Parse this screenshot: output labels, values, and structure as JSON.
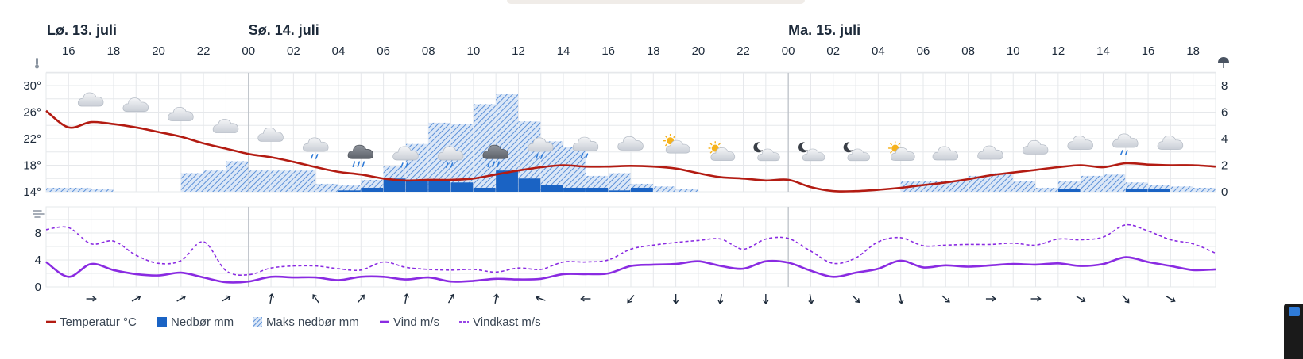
{
  "chart_data": {
    "type": "weather-meteogram",
    "days": [
      {
        "label": "Lø. 13. juli",
        "hour": 15
      },
      {
        "label": "Sø. 14. juli",
        "hour": 24
      },
      {
        "label": "Ma. 15. juli",
        "hour": 48
      }
    ],
    "hours": [
      "16",
      "18",
      "20",
      "22",
      "00",
      "02",
      "04",
      "06",
      "08",
      "10",
      "12",
      "14",
      "16",
      "18",
      "20",
      "22",
      "00",
      "02",
      "04",
      "06",
      "08",
      "10",
      "12",
      "14",
      "16",
      "18"
    ],
    "hour_positions": [
      16,
      18,
      20,
      22,
      24,
      26,
      28,
      30,
      32,
      34,
      36,
      38,
      40,
      42,
      44,
      46,
      48,
      50,
      52,
      54,
      56,
      58,
      60,
      62,
      64,
      66
    ],
    "x_range": [
      15,
      67
    ],
    "temperature": {
      "name": "Temperatur °C",
      "color": "#b31b12",
      "y_ticks": [
        "30°",
        "26°",
        "22°",
        "18°",
        "14°"
      ],
      "y_tick_values": [
        30,
        26,
        22,
        18,
        14
      ],
      "ylim": [
        14,
        30
      ],
      "x": [
        15,
        16,
        17,
        18,
        19,
        20,
        21,
        22,
        23,
        24,
        25,
        26,
        27,
        28,
        29,
        30,
        31,
        32,
        33,
        34,
        35,
        36,
        37,
        38,
        39,
        40,
        41,
        42,
        43,
        44,
        45,
        46,
        47,
        48,
        49,
        50,
        51,
        52,
        53,
        54,
        55,
        56,
        57,
        58,
        59,
        60,
        61,
        62,
        63,
        64,
        65,
        66,
        67
      ],
      "values": [
        26.2,
        23.7,
        24.5,
        24.2,
        23.7,
        23.0,
        22.3,
        21.3,
        20.5,
        19.7,
        19.2,
        18.5,
        17.7,
        17.0,
        16.6,
        16.0,
        15.7,
        15.8,
        15.8,
        16.0,
        16.6,
        17.2,
        17.7,
        18.0,
        17.8,
        17.8,
        17.9,
        17.8,
        17.5,
        16.8,
        16.2,
        16.0,
        15.7,
        15.8,
        14.7,
        14.1,
        14.1,
        14.3,
        14.6,
        15.0,
        15.4,
        15.9,
        16.5,
        16.9,
        17.3,
        17.7,
        18.0,
        17.7,
        18.3,
        18.1,
        18.0,
        18.0,
        17.8
      ]
    },
    "precipitation": {
      "name": "Nedbør mm",
      "color": "#1a63c4",
      "y_ticks": [
        "8",
        "6",
        "4",
        "2",
        "0"
      ],
      "y_tick_values": [
        8,
        6,
        4,
        2,
        0
      ],
      "ylim": [
        0,
        8
      ],
      "x_start": [
        15,
        16,
        17,
        18,
        19,
        20,
        21,
        22,
        23,
        24,
        25,
        26,
        27,
        28,
        29,
        30,
        31,
        32,
        33,
        34,
        35,
        36,
        37,
        38,
        39,
        40,
        41,
        42,
        43,
        44,
        45,
        46,
        47,
        48,
        49,
        50,
        51,
        52,
        53,
        54,
        55,
        56,
        57,
        58,
        59,
        60,
        61,
        62,
        63,
        64,
        65,
        66
      ],
      "values": [
        0,
        0,
        0,
        0,
        0,
        0,
        0,
        0,
        0,
        0,
        0,
        0,
        0,
        0.1,
        0.3,
        1.0,
        0.9,
        0.8,
        0.7,
        0.3,
        1.6,
        1.0,
        0.5,
        0.3,
        0.3,
        0.1,
        0.3,
        0,
        0,
        0,
        0,
        0,
        0,
        0,
        0,
        0,
        0,
        0,
        0,
        0,
        0,
        0,
        0,
        0,
        0,
        0.2,
        0,
        0,
        0.2,
        0.2,
        0,
        0
      ]
    },
    "max_precipitation": {
      "name": "Maks nedbør mm",
      "color": "#6ea0e0",
      "values": [
        0.3,
        0.3,
        0.2,
        0,
        0,
        0,
        1.4,
        1.6,
        2.3,
        1.6,
        1.6,
        1.6,
        0.6,
        0.5,
        0.9,
        1.9,
        3.6,
        5.2,
        5.1,
        6.6,
        7.4,
        5.3,
        3.8,
        3.4,
        1.2,
        1.4,
        0.6,
        0.4,
        0.2,
        0,
        0,
        0,
        0,
        0,
        0,
        0,
        0,
        0,
        0.8,
        0.8,
        0.8,
        1.2,
        1.4,
        0.8,
        0.3,
        0.8,
        1.2,
        1.3,
        0.7,
        0.5,
        0.4,
        0.3
      ]
    },
    "wind": {
      "name": "Vind m/s",
      "color": "#8a2be2",
      "y_ticks": [
        "8",
        "4",
        "0"
      ],
      "y_tick_values": [
        8,
        4,
        0
      ],
      "ylim": [
        0,
        10
      ],
      "x": [
        15,
        16,
        17,
        18,
        19,
        20,
        21,
        22,
        23,
        24,
        25,
        26,
        27,
        28,
        29,
        30,
        31,
        32,
        33,
        34,
        35,
        36,
        37,
        38,
        39,
        40,
        41,
        42,
        43,
        44,
        45,
        46,
        47,
        48,
        49,
        50,
        51,
        52,
        53,
        54,
        55,
        56,
        57,
        58,
        59,
        60,
        61,
        62,
        63,
        64,
        65,
        66,
        67
      ],
      "values": [
        3.7,
        1.5,
        3.4,
        2.5,
        1.9,
        1.7,
        2.1,
        1.4,
        0.7,
        0.8,
        1.5,
        1.4,
        1.4,
        1.0,
        1.5,
        1.5,
        1.1,
        1.4,
        0.8,
        0.9,
        1.2,
        1.1,
        1.2,
        1.9,
        1.9,
        2.0,
        3.1,
        3.3,
        3.4,
        3.8,
        3.1,
        2.7,
        3.8,
        3.6,
        2.4,
        1.5,
        2.1,
        2.7,
        3.9,
        2.9,
        3.2,
        3.0,
        3.2,
        3.4,
        3.3,
        3.5,
        3.1,
        3.4,
        4.4,
        3.7,
        3.1,
        2.5,
        2.6
      ]
    },
    "gust": {
      "name": "Vindkast m/s",
      "color": "#8a2be2",
      "values": [
        8.5,
        8.8,
        6.4,
        6.8,
        4.7,
        3.5,
        3.9,
        6.7,
        2.4,
        1.8,
        2.8,
        3.1,
        3.1,
        2.7,
        2.5,
        3.7,
        2.9,
        2.6,
        2.5,
        2.6,
        2.2,
        2.8,
        2.6,
        3.7,
        3.7,
        4.0,
        5.6,
        6.2,
        6.6,
        6.9,
        7.1,
        5.6,
        7.1,
        7.2,
        5.3,
        3.5,
        4.3,
        6.7,
        7.3,
        6.1,
        6.2,
        6.3,
        6.3,
        6.5,
        6.2,
        7.1,
        7.0,
        7.4,
        9.2,
        8.3,
        7.0,
        6.4,
        5.0
      ]
    },
    "symbols": [
      {
        "x": 17,
        "icon": "cloud-icon"
      },
      {
        "x": 19,
        "icon": "cloud-icon"
      },
      {
        "x": 21,
        "icon": "cloud-icon"
      },
      {
        "x": 23,
        "icon": "cloud-icon"
      },
      {
        "x": 25,
        "icon": "cloud-icon"
      },
      {
        "x": 27,
        "icon": "cloud-rain-light-icon"
      },
      {
        "x": 29,
        "icon": "dark-cloud-rain-icon"
      },
      {
        "x": 31,
        "icon": "cloud-rain-light-icon"
      },
      {
        "x": 33,
        "icon": "cloud-rain-light-icon"
      },
      {
        "x": 35,
        "icon": "dark-cloud-rain-icon"
      },
      {
        "x": 37,
        "icon": "cloud-rain-light-icon"
      },
      {
        "x": 39,
        "icon": "cloud-rain-light-icon"
      },
      {
        "x": 41,
        "icon": "cloud-icon"
      },
      {
        "x": 43,
        "icon": "partly-cloudy-sun-icon"
      },
      {
        "x": 45,
        "icon": "partly-cloudy-sun-icon"
      },
      {
        "x": 47,
        "icon": "partly-cloudy-moon-icon"
      },
      {
        "x": 49,
        "icon": "partly-cloudy-moon-icon"
      },
      {
        "x": 51,
        "icon": "partly-cloudy-moon-icon"
      },
      {
        "x": 53,
        "icon": "partly-cloudy-sun-icon"
      },
      {
        "x": 55,
        "icon": "cloud-icon"
      },
      {
        "x": 57,
        "icon": "cloud-icon"
      },
      {
        "x": 59,
        "icon": "cloud-icon"
      },
      {
        "x": 61,
        "icon": "cloud-icon"
      },
      {
        "x": 63,
        "icon": "cloud-rain-light-icon"
      },
      {
        "x": 65,
        "icon": "cloud-icon"
      }
    ],
    "wind_direction_arrows_deg": [
      {
        "x": 17,
        "deg": 270
      },
      {
        "x": 19,
        "deg": 240
      },
      {
        "x": 21,
        "deg": 240
      },
      {
        "x": 23,
        "deg": 240
      },
      {
        "x": 25,
        "deg": 190
      },
      {
        "x": 27,
        "deg": 145
      },
      {
        "x": 29,
        "deg": 220
      },
      {
        "x": 31,
        "deg": 190
      },
      {
        "x": 33,
        "deg": 210
      },
      {
        "x": 35,
        "deg": 190
      },
      {
        "x": 37,
        "deg": 110
      },
      {
        "x": 39,
        "deg": 90
      },
      {
        "x": 41,
        "deg": 40
      },
      {
        "x": 43,
        "deg": 0
      },
      {
        "x": 45,
        "deg": 10
      },
      {
        "x": 47,
        "deg": 0
      },
      {
        "x": 49,
        "deg": 350
      },
      {
        "x": 51,
        "deg": 315
      },
      {
        "x": 53,
        "deg": 350
      },
      {
        "x": 55,
        "deg": 310
      },
      {
        "x": 57,
        "deg": 270
      },
      {
        "x": 59,
        "deg": 270
      },
      {
        "x": 61,
        "deg": 300
      },
      {
        "x": 63,
        "deg": 320
      },
      {
        "x": 65,
        "deg": 300
      }
    ],
    "legend": [
      {
        "label": "Temperatur °C",
        "type": "line",
        "color": "#b31b12"
      },
      {
        "label": "Nedbør mm",
        "type": "square",
        "color": "#1a63c4"
      },
      {
        "label": "Maks nedbør mm",
        "type": "hatch",
        "color": "#6ea0e0"
      },
      {
        "label": "Vind m/s",
        "type": "line",
        "color": "#8a2be2"
      },
      {
        "label": "Vindkast m/s",
        "type": "dash",
        "color": "#8a2be2"
      }
    ],
    "grid": true
  }
}
